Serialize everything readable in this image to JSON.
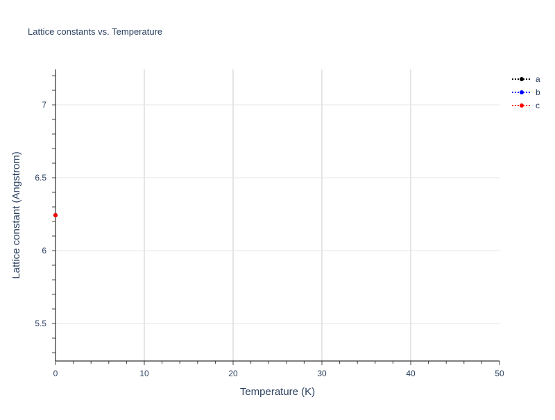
{
  "chart_data": {
    "type": "scatter",
    "mode": "lines+markers",
    "title": "Lattice constants vs. Temperature",
    "xlabel": "Temperature (K)",
    "ylabel": "Lattice constant (Angstrom)",
    "xlim": [
      0,
      50
    ],
    "ylim": [
      5.243,
      7.243
    ],
    "xticks": [
      0,
      10,
      20,
      30,
      40,
      50
    ],
    "yticks": [
      5.5,
      6,
      6.5,
      7
    ],
    "ytick_labels": [
      "5.5",
      "6",
      "6.5",
      "7"
    ],
    "grid": true,
    "legend_placement": "top-right",
    "series": [
      {
        "name": "a",
        "color": "#000000",
        "line": "dot",
        "x": [
          0
        ],
        "y": [
          6.243
        ]
      },
      {
        "name": "b",
        "color": "#0000ff",
        "line": "dot",
        "x": [
          0
        ],
        "y": [
          6.243
        ]
      },
      {
        "name": "c",
        "color": "#ff0000",
        "line": "dot",
        "x": [
          0
        ],
        "y": [
          6.243
        ]
      }
    ]
  }
}
